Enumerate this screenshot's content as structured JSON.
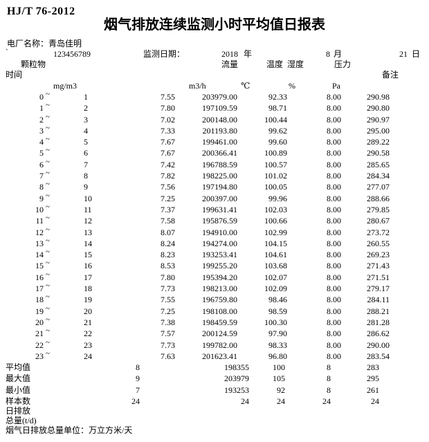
{
  "header": {
    "standard": "HJ/T 76-2012",
    "title": "烟气排放连续监测小时平均值日报表",
    "plant_label": "电厂名称：",
    "plant_name": "青岛佳明",
    "mark": "`",
    "plant_code": "123456789",
    "date_label": "监测日期：",
    "year": "2018",
    "year_unit": "年",
    "month": "8",
    "month_unit": "月",
    "day": "21",
    "day_unit": "日"
  },
  "table": {
    "time_header": "时间",
    "pm_header": "颗粒物",
    "flow_header": "流量",
    "temp_header": "温度",
    "humidity_header": "湿度",
    "pressure_header": "压力",
    "remark_header": "备注",
    "tilde": "~",
    "units": {
      "pm": "mg/m3",
      "flow": "m3/h",
      "temp": "℃",
      "humidity": "%",
      "pressure": "Pa"
    },
    "rows": [
      {
        "start": "0",
        "end": "1",
        "pm": "7.55",
        "flow": "203979.00",
        "temp": "92.33",
        "hum": "8.00",
        "press": "290.98"
      },
      {
        "start": "1",
        "end": "2",
        "pm": "7.80",
        "flow": "197109.59",
        "temp": "98.71",
        "hum": "8.00",
        "press": "290.80"
      },
      {
        "start": "2",
        "end": "3",
        "pm": "7.02",
        "flow": "200148.00",
        "temp": "100.44",
        "hum": "8.00",
        "press": "290.97"
      },
      {
        "start": "3",
        "end": "4",
        "pm": "7.33",
        "flow": "201193.80",
        "temp": "99.62",
        "hum": "8.00",
        "press": "295.00"
      },
      {
        "start": "4",
        "end": "5",
        "pm": "7.67",
        "flow": "199461.00",
        "temp": "99.60",
        "hum": "8.00",
        "press": "289.22"
      },
      {
        "start": "5",
        "end": "6",
        "pm": "7.67",
        "flow": "200366.41",
        "temp": "100.89",
        "hum": "8.00",
        "press": "290.58"
      },
      {
        "start": "6",
        "end": "7",
        "pm": "7.42",
        "flow": "196788.59",
        "temp": "100.57",
        "hum": "8.00",
        "press": "285.65"
      },
      {
        "start": "7",
        "end": "8",
        "pm": "7.82",
        "flow": "198225.00",
        "temp": "101.02",
        "hum": "8.00",
        "press": "284.34"
      },
      {
        "start": "8",
        "end": "9",
        "pm": "7.56",
        "flow": "197194.80",
        "temp": "100.05",
        "hum": "8.00",
        "press": "277.07"
      },
      {
        "start": "9",
        "end": "10",
        "pm": "7.25",
        "flow": "200397.00",
        "temp": "99.96",
        "hum": "8.00",
        "press": "288.66"
      },
      {
        "start": "10",
        "end": "11",
        "pm": "7.37",
        "flow": "199631.41",
        "temp": "102.03",
        "hum": "8.00",
        "press": "279.85"
      },
      {
        "start": "11",
        "end": "12",
        "pm": "7.58",
        "flow": "195876.59",
        "temp": "100.66",
        "hum": "8.00",
        "press": "280.67"
      },
      {
        "start": "12",
        "end": "13",
        "pm": "8.07",
        "flow": "194910.00",
        "temp": "102.99",
        "hum": "8.00",
        "press": "273.72"
      },
      {
        "start": "13",
        "end": "14",
        "pm": "8.24",
        "flow": "194274.00",
        "temp": "104.15",
        "hum": "8.00",
        "press": "260.55"
      },
      {
        "start": "14",
        "end": "15",
        "pm": "8.23",
        "flow": "193253.41",
        "temp": "104.61",
        "hum": "8.00",
        "press": "269.23"
      },
      {
        "start": "15",
        "end": "16",
        "pm": "8.53",
        "flow": "199255.20",
        "temp": "103.68",
        "hum": "8.00",
        "press": "271.43"
      },
      {
        "start": "16",
        "end": "17",
        "pm": "7.80",
        "flow": "195394.20",
        "temp": "102.07",
        "hum": "8.00",
        "press": "271.51"
      },
      {
        "start": "17",
        "end": "18",
        "pm": "7.73",
        "flow": "198213.00",
        "temp": "102.09",
        "hum": "8.00",
        "press": "279.17"
      },
      {
        "start": "18",
        "end": "19",
        "pm": "7.55",
        "flow": "196759.80",
        "temp": "98.46",
        "hum": "8.00",
        "press": "284.11"
      },
      {
        "start": "19",
        "end": "20",
        "pm": "7.25",
        "flow": "198108.00",
        "temp": "98.59",
        "hum": "8.00",
        "press": "288.21"
      },
      {
        "start": "20",
        "end": "21",
        "pm": "7.38",
        "flow": "198459.59",
        "temp": "100.30",
        "hum": "8.00",
        "press": "281.28"
      },
      {
        "start": "21",
        "end": "22",
        "pm": "7.57",
        "flow": "200124.59",
        "temp": "97.90",
        "hum": "8.00",
        "press": "286.62"
      },
      {
        "start": "22",
        "end": "23",
        "pm": "7.73",
        "flow": "199782.00",
        "temp": "98.33",
        "hum": "8.00",
        "press": "290.00"
      },
      {
        "start": "23",
        "end": "24",
        "pm": "7.63",
        "flow": "201623.41",
        "temp": "96.80",
        "hum": "8.00",
        "press": "283.54"
      }
    ],
    "summary": [
      {
        "label": "平均值",
        "pm": "8",
        "flow": "198355",
        "temp": "100",
        "hum": "8",
        "press": "283"
      },
      {
        "label": "最大值",
        "pm": "9",
        "flow": "203979",
        "temp": "105",
        "hum": "8",
        "press": "295"
      },
      {
        "label": "最小值",
        "pm": "7",
        "flow": "193253",
        "temp": "92",
        "hum": "8",
        "press": "261"
      },
      {
        "label": "样本数",
        "pm": "24",
        "flow": "24",
        "temp": "24",
        "hum": "24",
        "press": "24"
      }
    ]
  },
  "footer": {
    "daily_emission": "日排放",
    "total": "总量(t/d)",
    "unit_note": "烟气日排放总量单位：万立方米/天"
  }
}
